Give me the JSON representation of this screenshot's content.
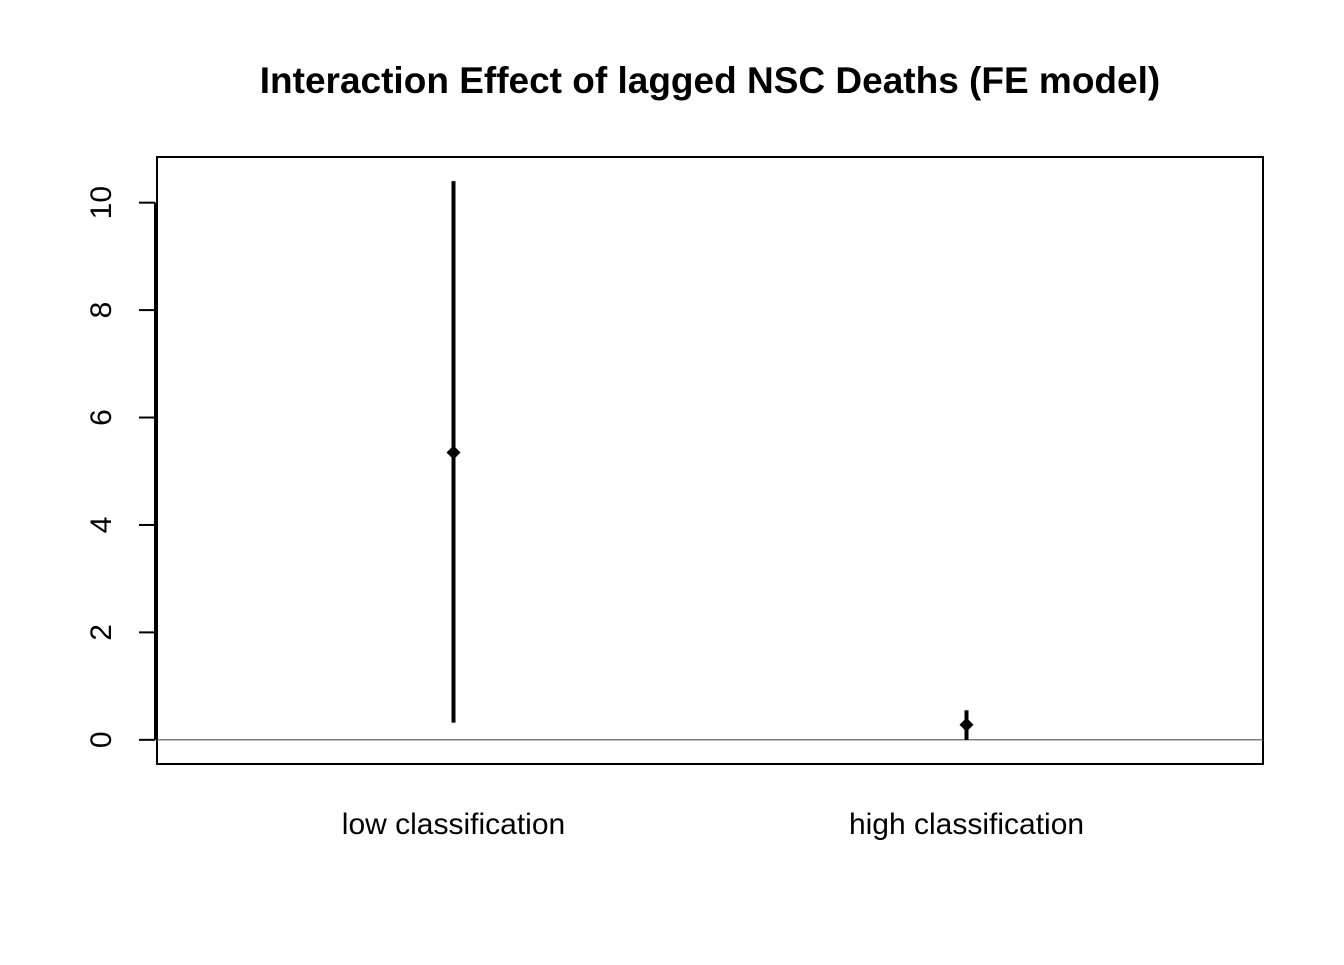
{
  "chart_data": {
    "type": "point-range",
    "title": "Interaction Effect of lagged NSC Deaths (FE model)",
    "xlabel": "",
    "ylabel": "",
    "categories": [
      "low classification",
      "high classification"
    ],
    "estimates": [
      5.35,
      0.28
    ],
    "lower": [
      0.32,
      0.0
    ],
    "upper": [
      10.4,
      0.55
    ],
    "ylim": [
      -0.45,
      10.85
    ],
    "yticks": [
      0,
      2,
      4,
      6,
      8,
      10
    ],
    "reference_line": 0,
    "grid": false,
    "legend": "none",
    "colors": {
      "marks": "#000000",
      "reference_line": "#555555",
      "background": "#ffffff"
    }
  }
}
